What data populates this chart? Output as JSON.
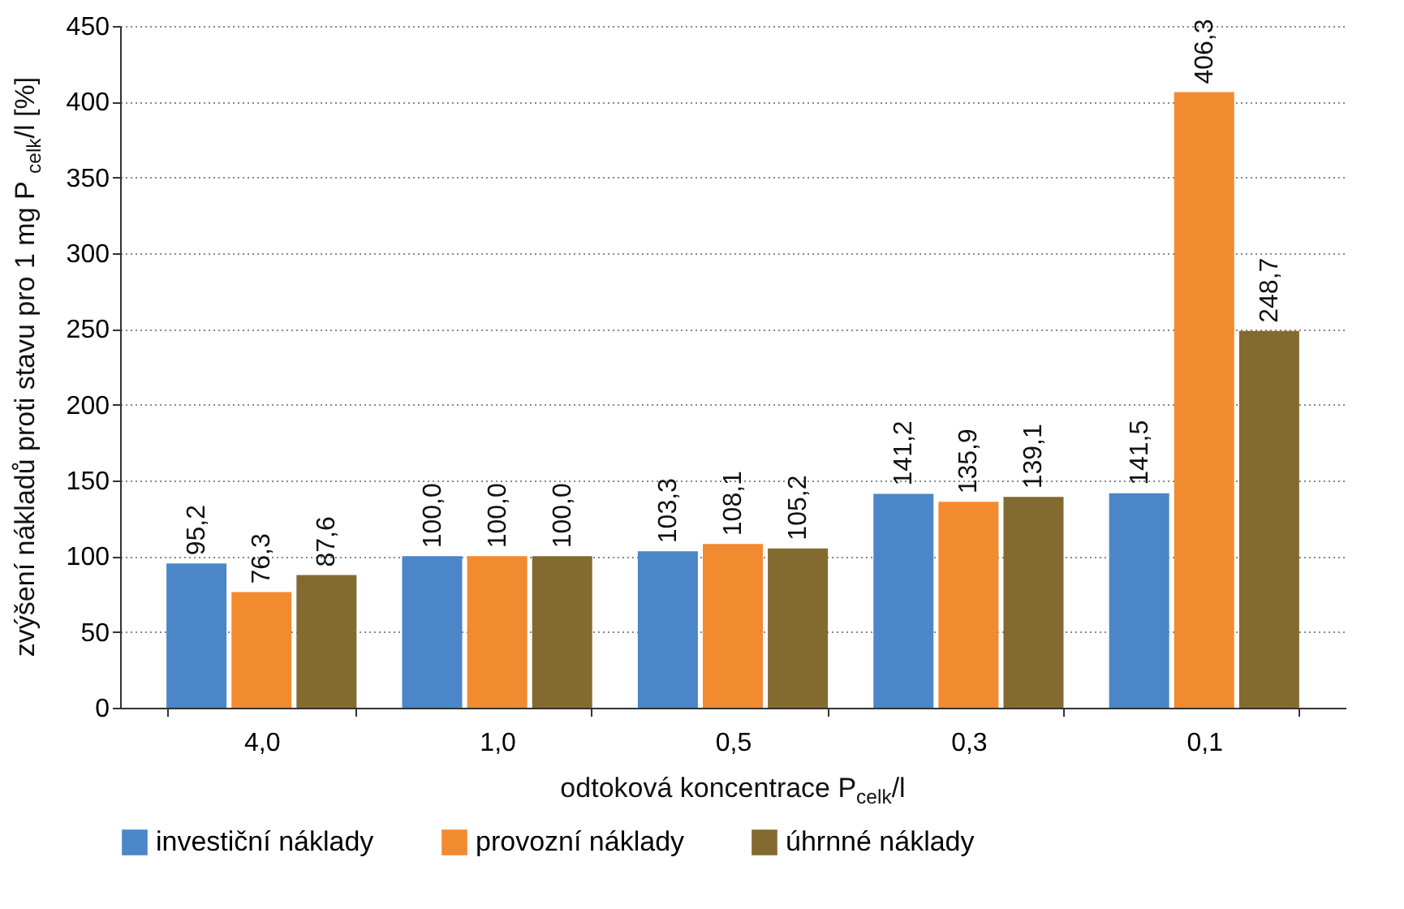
{
  "chart_data": {
    "type": "bar",
    "xlabel": "odtoková koncentrace P$_{celk}$/l",
    "ylabel": "zvýšení nákladů proti stavu pro 1 mg P$_{celk}$/l [%]",
    "categories": [
      "4,0",
      "1,0",
      "0,5",
      "0,3",
      "0,1"
    ],
    "series": [
      {
        "name": "investiční náklady",
        "color": "#4a86c8",
        "values": [
          95.2,
          100.0,
          103.3,
          141.2,
          141.5
        ],
        "value_labels": [
          "95,2",
          "100,0",
          "103,3",
          "141,2",
          "141,5"
        ]
      },
      {
        "name": "provozní náklady",
        "color": "#f28a30",
        "values": [
          76.3,
          100.0,
          108.1,
          135.9,
          406.3
        ],
        "value_labels": [
          "76,3",
          "100,0",
          "108,1",
          "135,9",
          "406,3"
        ]
      },
      {
        "name": "úhrnné náklady",
        "color": "#836a30",
        "values": [
          87.6,
          100.0,
          105.2,
          139.1,
          248.7
        ],
        "value_labels": [
          "87,6",
          "100,0",
          "105,2",
          "139,1",
          "248,7"
        ]
      }
    ],
    "ylim": [
      0,
      450
    ],
    "yticks": [
      0,
      50,
      100,
      150,
      200,
      250,
      300,
      350,
      400,
      450
    ],
    "grid": "y",
    "legend": "bottom"
  }
}
